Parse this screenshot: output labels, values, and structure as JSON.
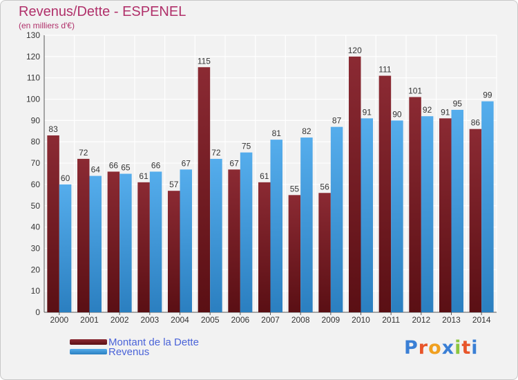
{
  "header": {
    "title": "Revenus/Dette - ESPENEL",
    "subtitle": "(en milliers d'€)"
  },
  "logo": {
    "text": "Proxiti",
    "colors": [
      "#3a7fd5",
      "#e8552a",
      "#f0a020",
      "#3a7fd5",
      "#8cc63f",
      "#e8552a",
      "#3a7fd5"
    ]
  },
  "colors": {
    "dette": "#7d2128",
    "revenus": "#3a95d8",
    "legend_text": "#4a63d8",
    "title": "#b0306a"
  },
  "chart_data": {
    "type": "bar",
    "categories": [
      "2000",
      "2001",
      "2002",
      "2003",
      "2004",
      "2005",
      "2006",
      "2007",
      "2008",
      "2009",
      "2010",
      "2011",
      "2012",
      "2013",
      "2014"
    ],
    "series": [
      {
        "name": "Montant de la Dette",
        "values": [
          83,
          72,
          66,
          61,
          57,
          115,
          67,
          61,
          55,
          56,
          120,
          111,
          101,
          91,
          86
        ]
      },
      {
        "name": "Revenus",
        "values": [
          60,
          64,
          65,
          66,
          67,
          72,
          75,
          81,
          82,
          87,
          91,
          90,
          92,
          95,
          99
        ]
      }
    ],
    "yticks": [
      0,
      10,
      20,
      30,
      40,
      50,
      60,
      70,
      80,
      90,
      100,
      110,
      120,
      130
    ],
    "ylim": [
      0,
      130
    ],
    "grid": true,
    "legend_position": "bottom-left"
  }
}
